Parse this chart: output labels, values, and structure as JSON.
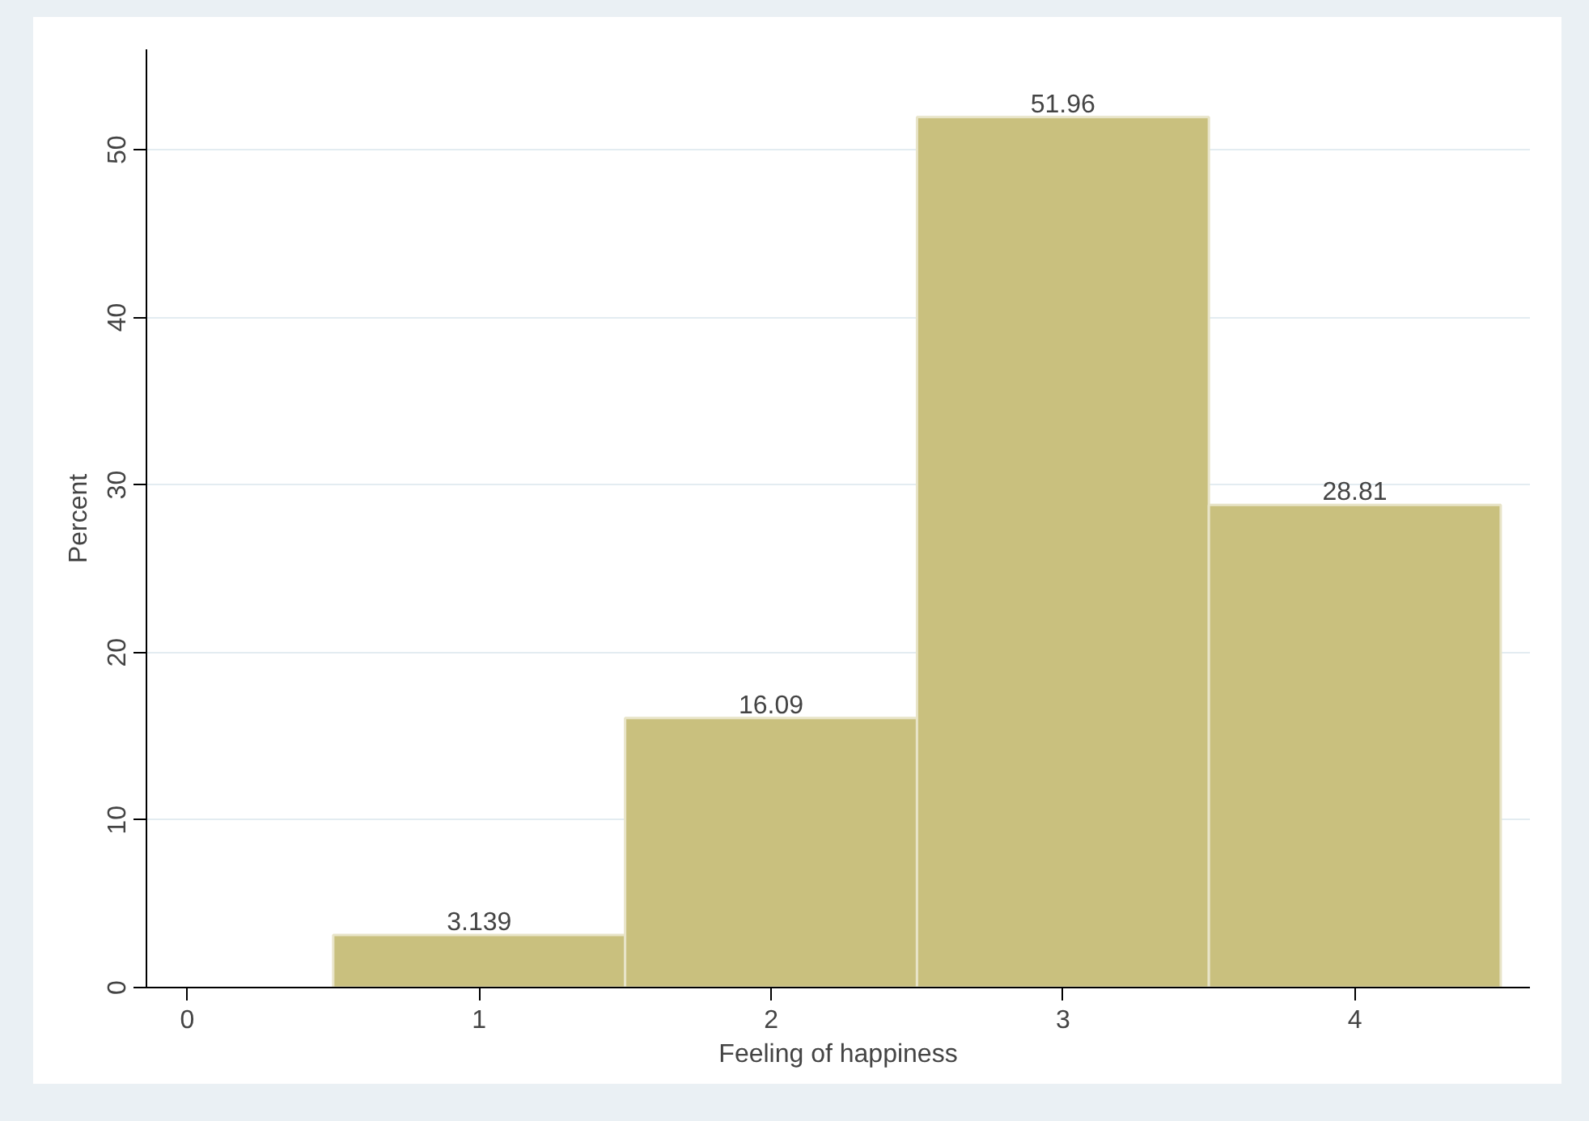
{
  "chart_data": {
    "type": "histogram",
    "xlabel": "Feeling of happiness",
    "ylabel": "Percent",
    "bins": [
      0.5,
      1.5,
      2.5,
      3.5,
      4.5
    ],
    "values": [
      3.139,
      16.09,
      51.96,
      28.81
    ],
    "color": "#c9c07e",
    "data_labels": true,
    "xlim": [
      -0.14,
      4.6
    ],
    "ylim": [
      0,
      56
    ],
    "xticks": [
      0,
      1,
      2,
      3,
      4
    ],
    "yticks": [
      0,
      10,
      20,
      30,
      40,
      50
    ],
    "grid": "y"
  }
}
